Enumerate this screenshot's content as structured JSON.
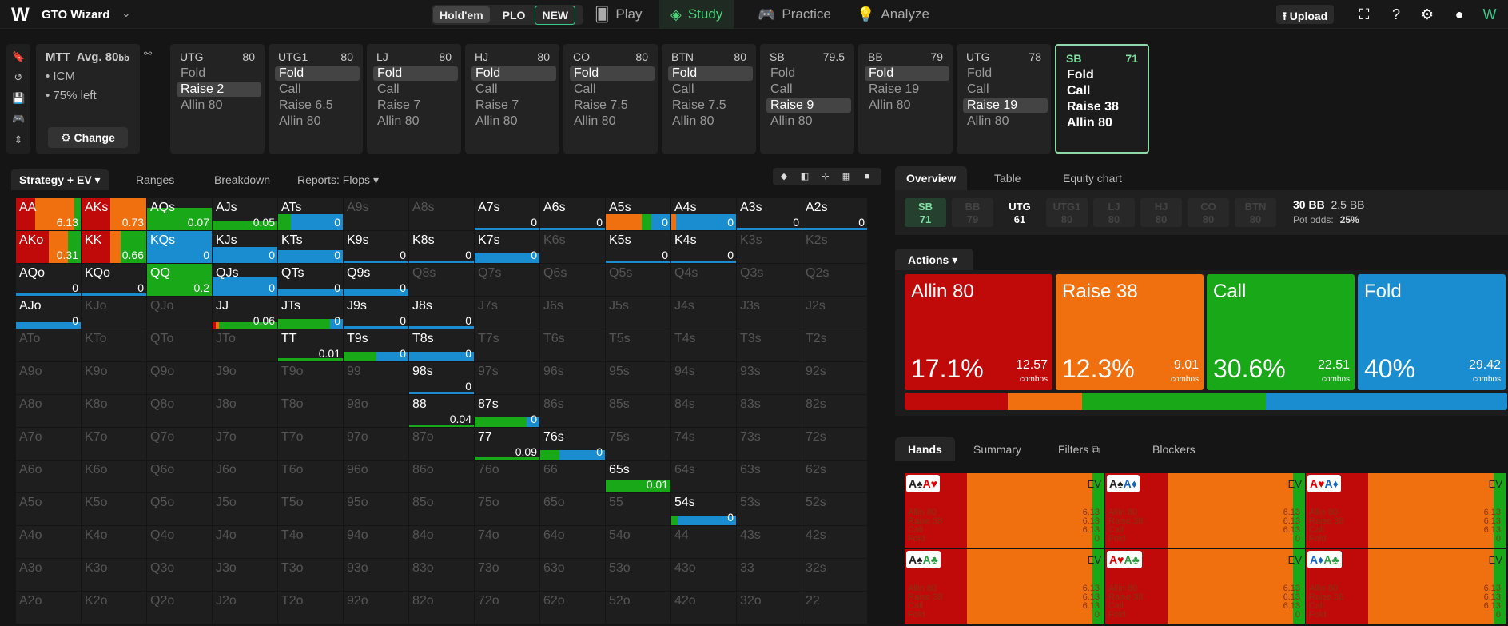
{
  "app": {
    "title": "GTO Wizard",
    "game_holdem": "Hold'em",
    "game_plo": "PLO",
    "plo_badge": "NEW",
    "nav": [
      {
        "label": "Play"
      },
      {
        "label": "Study"
      },
      {
        "label": "Practice"
      },
      {
        "label": "Analyze"
      }
    ],
    "upload": "Upload"
  },
  "mtt": {
    "title": "MTT",
    "avg": "Avg. 80",
    "avg_unit": "bb",
    "line1": "ICM",
    "line2": "75% left",
    "change": "Change"
  },
  "positions": [
    {
      "name": "UTG",
      "stack": "80",
      "actions": [
        "Fold",
        "Raise 2",
        "Allin 80"
      ],
      "hl": 1
    },
    {
      "name": "UTG1",
      "stack": "80",
      "actions": [
        "Fold",
        "Call",
        "Raise 6.5",
        "Allin 80"
      ],
      "hl": 0
    },
    {
      "name": "LJ",
      "stack": "80",
      "actions": [
        "Fold",
        "Call",
        "Raise 7",
        "Allin 80"
      ],
      "hl": 0
    },
    {
      "name": "HJ",
      "stack": "80",
      "actions": [
        "Fold",
        "Call",
        "Raise 7",
        "Allin 80"
      ],
      "hl": 0
    },
    {
      "name": "CO",
      "stack": "80",
      "actions": [
        "Fold",
        "Call",
        "Raise 7.5",
        "Allin 80"
      ],
      "hl": 0
    },
    {
      "name": "BTN",
      "stack": "80",
      "actions": [
        "Fold",
        "Call",
        "Raise 7.5",
        "Allin 80"
      ],
      "hl": 0
    },
    {
      "name": "SB",
      "stack": "79.5",
      "actions": [
        "Fold",
        "Call",
        "Raise 9",
        "Allin 80"
      ],
      "hl": 2
    },
    {
      "name": "BB",
      "stack": "79",
      "actions": [
        "Fold",
        "Raise 19",
        "Allin 80"
      ],
      "hl": 0
    },
    {
      "name": "UTG",
      "stack": "78",
      "actions": [
        "Fold",
        "Call",
        "Raise 19",
        "Allin 80"
      ],
      "hl": 2
    },
    {
      "name": "SB",
      "stack": "71",
      "actions": [
        "Fold",
        "Call",
        "Raise 38",
        "Allin 80"
      ],
      "hl": -1
    }
  ],
  "left_tabs": [
    "Strategy + EV",
    "Ranges",
    "Breakdown",
    "Reports: Flops"
  ],
  "colors": {
    "allin": "#c00a0a",
    "raise": "#f07010",
    "call": "#18a818",
    "fold": "#1a8cd0"
  },
  "grid": [
    [
      "AA",
      "AKs",
      "AQs",
      "AJs",
      "ATs",
      "A9s",
      "A8s",
      "A7s",
      "A6s",
      "A5s",
      "A4s",
      "A3s",
      "A2s"
    ],
    [
      "AKo",
      "KK",
      "KQs",
      "KJs",
      "KTs",
      "K9s",
      "K8s",
      "K7s",
      "K6s",
      "K5s",
      "K4s",
      "K3s",
      "K2s"
    ],
    [
      "AQo",
      "KQo",
      "QQ",
      "QJs",
      "QTs",
      "Q9s",
      "Q8s",
      "Q7s",
      "Q6s",
      "Q5s",
      "Q4s",
      "Q3s",
      "Q2s"
    ],
    [
      "AJo",
      "KJo",
      "QJo",
      "JJ",
      "JTs",
      "J9s",
      "J8s",
      "J7s",
      "J6s",
      "J5s",
      "J4s",
      "J3s",
      "J2s"
    ],
    [
      "ATo",
      "KTo",
      "QTo",
      "JTo",
      "TT",
      "T9s",
      "T8s",
      "T7s",
      "T6s",
      "T5s",
      "T4s",
      "T3s",
      "T2s"
    ],
    [
      "A9o",
      "K9o",
      "Q9o",
      "J9o",
      "T9o",
      "99",
      "98s",
      "97s",
      "96s",
      "95s",
      "94s",
      "93s",
      "92s"
    ],
    [
      "A8o",
      "K8o",
      "Q8o",
      "J8o",
      "T8o",
      "98o",
      "88",
      "87s",
      "86s",
      "85s",
      "84s",
      "83s",
      "82s"
    ],
    [
      "A7o",
      "K7o",
      "Q7o",
      "J7o",
      "T7o",
      "97o",
      "87o",
      "77",
      "76s",
      "75s",
      "74s",
      "73s",
      "72s"
    ],
    [
      "A6o",
      "K6o",
      "Q6o",
      "J6o",
      "T6o",
      "96o",
      "86o",
      "76o",
      "66",
      "65s",
      "64s",
      "63s",
      "62s"
    ],
    [
      "A5o",
      "K5o",
      "Q5o",
      "J5o",
      "T5o",
      "95o",
      "85o",
      "75o",
      "65o",
      "55",
      "54s",
      "53s",
      "52s"
    ],
    [
      "A4o",
      "K4o",
      "Q4o",
      "J4o",
      "T4o",
      "94o",
      "84o",
      "74o",
      "64o",
      "54o",
      "44",
      "43s",
      "42s"
    ],
    [
      "A3o",
      "K3o",
      "Q3o",
      "J3o",
      "T3o",
      "93o",
      "83o",
      "73o",
      "63o",
      "53o",
      "43o",
      "33",
      "32s"
    ],
    [
      "A2o",
      "K2o",
      "Q2o",
      "J2o",
      "T2o",
      "92o",
      "82o",
      "72o",
      "62o",
      "52o",
      "42o",
      "32o",
      "22"
    ]
  ],
  "grid_cells": {
    "AA": {
      "ev": "6.13",
      "h": 1,
      "f": [
        0.3,
        0.6,
        0.1,
        0
      ]
    },
    "AKs": {
      "ev": "0.73",
      "h": 1,
      "f": [
        0.45,
        0.55,
        0,
        0
      ]
    },
    "AQs": {
      "ev": "0.07",
      "h": 0.7,
      "f": [
        0,
        0,
        1,
        0
      ]
    },
    "AJs": {
      "ev": "0.05",
      "h": 0.3,
      "f": [
        0,
        0,
        1,
        0
      ]
    },
    "ATs": {
      "ev": "0",
      "h": 0.5,
      "f": [
        0,
        0,
        0.2,
        0.8
      ]
    },
    "A7s": {
      "ev": "0",
      "h": 0.08,
      "f": [
        0,
        0,
        0,
        1
      ]
    },
    "A6s": {
      "ev": "0",
      "h": 0.08,
      "f": [
        0,
        0,
        0,
        1
      ]
    },
    "A5s": {
      "ev": "0",
      "h": 0.5,
      "f": [
        0,
        0.55,
        0.15,
        0.3
      ]
    },
    "A4s": {
      "ev": "0",
      "h": 0.5,
      "f": [
        0,
        0.08,
        0,
        0.92
      ]
    },
    "A3s": {
      "ev": "0",
      "h": 0.08,
      "f": [
        0,
        0,
        0,
        1
      ]
    },
    "A2s": {
      "ev": "0",
      "h": 0.08,
      "f": [
        0,
        0,
        0,
        1
      ]
    },
    "AKo": {
      "ev": "0.31",
      "h": 1,
      "f": [
        0.5,
        0.3,
        0.2,
        0
      ]
    },
    "KK": {
      "ev": "0.66",
      "h": 1,
      "f": [
        0.45,
        0.15,
        0.4,
        0
      ]
    },
    "KQs": {
      "ev": "0",
      "h": 1,
      "f": [
        0,
        0,
        0,
        1
      ]
    },
    "KJs": {
      "ev": "0",
      "h": 0.5,
      "f": [
        0,
        0,
        0,
        1
      ]
    },
    "KTs": {
      "ev": "0",
      "h": 0.4,
      "f": [
        0,
        0,
        0,
        1
      ]
    },
    "K9s": {
      "ev": "0",
      "h": 0,
      "f": [
        0,
        0,
        0,
        1
      ]
    },
    "K8s": {
      "ev": "0",
      "h": 0.05,
      "f": [
        0,
        0,
        0,
        1
      ]
    },
    "K7s": {
      "ev": "0",
      "h": 0.3,
      "f": [
        0,
        0,
        0,
        1
      ]
    },
    "K5s": {
      "ev": "0",
      "h": 0,
      "f": [
        0,
        0,
        0,
        1
      ]
    },
    "K4s": {
      "ev": "0",
      "h": 0.05,
      "f": [
        0,
        0,
        0,
        1
      ]
    },
    "AQo": {
      "ev": "0",
      "h": 0,
      "f": [
        0,
        0,
        0,
        1
      ]
    },
    "KQo": {
      "ev": "0",
      "h": 0.05,
      "f": [
        0,
        0,
        0,
        1
      ]
    },
    "QQ": {
      "ev": "0.2",
      "h": 1,
      "f": [
        0,
        0,
        1,
        0
      ]
    },
    "QJs": {
      "ev": "0",
      "h": 0.6,
      "f": [
        0,
        0,
        0,
        1
      ]
    },
    "QTs": {
      "ev": "0",
      "h": 0.2,
      "f": [
        0,
        0,
        0,
        1
      ]
    },
    "Q9s": {
      "ev": "0",
      "h": 0.2,
      "f": [
        0,
        0,
        0,
        1
      ]
    },
    "AJo": {
      "ev": "0",
      "h": 0.2,
      "f": [
        0,
        0,
        0,
        1
      ]
    },
    "JJ": {
      "ev": "0.06",
      "h": 0.2,
      "f": [
        0.05,
        0.05,
        0.9,
        0
      ]
    },
    "JTs": {
      "ev": "0",
      "h": 0.3,
      "f": [
        0,
        0,
        0.8,
        0.2
      ]
    },
    "J9s": {
      "ev": "0",
      "h": 0,
      "f": [
        0,
        0,
        0,
        1
      ]
    },
    "J8s": {
      "ev": "0",
      "h": 0,
      "f": [
        0,
        0,
        0,
        1
      ]
    },
    "TT": {
      "ev": "0.01",
      "h": 0.1,
      "f": [
        0,
        0,
        1,
        0
      ]
    },
    "T9s": {
      "ev": "0",
      "h": 0.3,
      "f": [
        0,
        0,
        0.5,
        0.5
      ]
    },
    "T8s": {
      "ev": "0",
      "h": 0.3,
      "f": [
        0,
        0,
        0,
        1
      ]
    },
    "98s": {
      "ev": "0",
      "h": 0.05,
      "f": [
        0,
        0,
        0,
        1
      ]
    },
    "88": {
      "ev": "0.04",
      "h": 0.05,
      "f": [
        0,
        0,
        1,
        0
      ]
    },
    "87s": {
      "ev": "0",
      "h": 0.3,
      "f": [
        0,
        0,
        0.8,
        0.2
      ]
    },
    "77": {
      "ev": "0.09",
      "h": 0,
      "f": [
        0,
        0,
        1,
        0
      ]
    },
    "76s": {
      "ev": "0",
      "h": 0.3,
      "f": [
        0,
        0,
        0.3,
        0.7
      ]
    },
    "65s": {
      "ev": "0.01",
      "h": 0.4,
      "f": [
        0,
        0,
        1,
        0
      ]
    },
    "54s": {
      "ev": "0",
      "h": 0.3,
      "f": [
        0,
        0,
        0.1,
        0.9
      ]
    }
  },
  "right_tabs": [
    "Overview",
    "Table",
    "Equity chart"
  ],
  "mini_positions": [
    {
      "name": "SB",
      "stack": "71"
    },
    {
      "name": "BB",
      "stack": "79"
    },
    {
      "name": "UTG",
      "stack": "61"
    },
    {
      "name": "UTG1",
      "stack": "80"
    },
    {
      "name": "LJ",
      "stack": "80"
    },
    {
      "name": "HJ",
      "stack": "80"
    },
    {
      "name": "CO",
      "stack": "80"
    },
    {
      "name": "BTN",
      "stack": "80"
    }
  ],
  "pot": {
    "bb": "30 BB",
    "bb2": "2.5 BB",
    "odds_label": "Pot odds:",
    "odds": "25%"
  },
  "actions_label": "Actions",
  "action_cards": [
    {
      "name": "Allin 80",
      "pct": "17.1%",
      "combos": "12.57",
      "combos_label": "combos",
      "frac": 0.171
    },
    {
      "name": "Raise 38",
      "pct": "12.3%",
      "combos": "9.01",
      "combos_label": "combos",
      "frac": 0.123
    },
    {
      "name": "Call",
      "pct": "30.6%",
      "combos": "22.51",
      "combos_label": "combos",
      "frac": 0.306
    },
    {
      "name": "Fold",
      "pct": "40%",
      "combos": "29.42",
      "combos_label": "combos",
      "frac": 0.4
    }
  ],
  "hands_tabs": [
    "Hands",
    "Summary",
    "Filters",
    "Blockers"
  ],
  "hand_rows_labels": [
    "Allin 80",
    "Raise 38",
    "Call",
    "Fold"
  ],
  "hand_cards": [
    {
      "r1": "A",
      "s1": "♠",
      "c1": "b",
      "r2": "A",
      "s2": "♥",
      "c2": "r",
      "ev": "EV",
      "vals": [
        "6.13",
        "6.13",
        "6.13",
        "0"
      ],
      "f": [
        0.3,
        0.6,
        0.1
      ]
    },
    {
      "r1": "A",
      "s1": "♠",
      "c1": "b",
      "r2": "A",
      "s2": "♦",
      "c2": "bl",
      "ev": "EV",
      "vals": [
        "6.13",
        "6.13",
        "6.13",
        "0"
      ],
      "f": [
        0.3,
        0.6,
        0.1
      ]
    },
    {
      "r1": "A",
      "s1": "♥",
      "c1": "r",
      "r2": "A",
      "s2": "♦",
      "c2": "bl",
      "ev": "EV",
      "vals": [
        "6.13",
        "6.13",
        "6.13",
        "0"
      ],
      "f": [
        0.3,
        0.6,
        0.1
      ]
    },
    {
      "r1": "A",
      "s1": "♠",
      "c1": "b",
      "r2": "A",
      "s2": "♣",
      "c2": "g",
      "ev": "EV",
      "vals": [
        "6.13",
        "6.13",
        "6.13",
        "0"
      ],
      "f": [
        0.3,
        0.6,
        0.1
      ]
    },
    {
      "r1": "A",
      "s1": "♥",
      "c1": "r",
      "r2": "A",
      "s2": "♣",
      "c2": "g",
      "ev": "EV",
      "vals": [
        "6.13",
        "6.13",
        "6.13",
        "0"
      ],
      "f": [
        0.3,
        0.6,
        0.1
      ]
    },
    {
      "r1": "A",
      "s1": "♦",
      "c1": "bl",
      "r2": "A",
      "s2": "♣",
      "c2": "g",
      "ev": "EV",
      "vals": [
        "6.13",
        "6.13",
        "6.13",
        "0"
      ],
      "f": [
        0.3,
        0.6,
        0.1
      ]
    }
  ]
}
